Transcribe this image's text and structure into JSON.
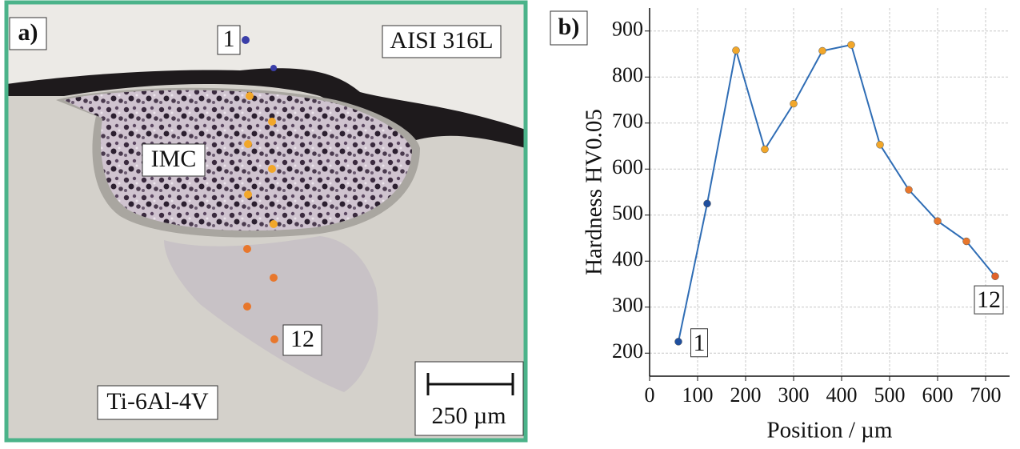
{
  "panel_a": {
    "label": "a)",
    "point_first": "1",
    "steel": "AISI 316L",
    "imc": "IMC",
    "point_last": "12",
    "titanium": "Ti-6Al-4V",
    "scale_bar": "250 µm"
  },
  "chart_data": {
    "type": "line",
    "panel_label": "b)",
    "x_label": "Position / µm",
    "y_label": "Hardness HV0.05",
    "x": [
      60,
      120,
      180,
      240,
      300,
      360,
      420,
      480,
      540,
      600,
      660,
      720
    ],
    "values": [
      225,
      525,
      858,
      643,
      742,
      857,
      870,
      653,
      555,
      487,
      443,
      367
    ],
    "line_color": "#2f6db5",
    "point_colors": [
      "#1f4f9e",
      "#1f4f9e",
      "#f2a72a",
      "#f2a72a",
      "#f2a72a",
      "#f2a72a",
      "#f2a72a",
      "#f2a72a",
      "#e8772c",
      "#e8772c",
      "#e8772c",
      "#e0622a"
    ],
    "annotations": [
      "1",
      "12"
    ],
    "xlim": [
      0,
      750
    ],
    "ylim": [
      150,
      950
    ],
    "xticks": [
      0,
      100,
      200,
      300,
      400,
      500,
      600,
      700
    ],
    "yticks": [
      200,
      300,
      400,
      500,
      600,
      700,
      800,
      900
    ],
    "grid": true
  }
}
